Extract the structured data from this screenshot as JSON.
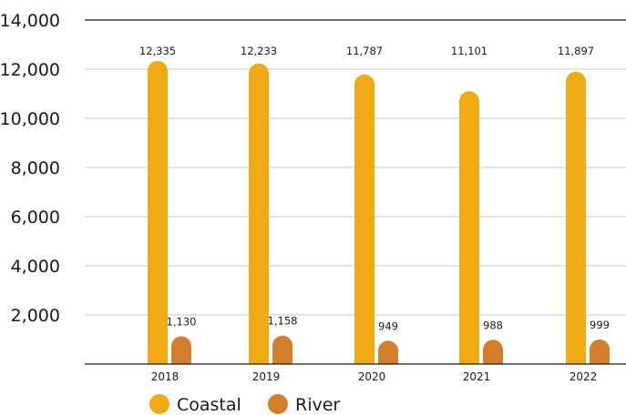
{
  "chart_data": {
    "type": "bar",
    "categories": [
      "2018",
      "2019",
      "2020",
      "2021",
      "2022"
    ],
    "series": [
      {
        "name": "Coastal",
        "values": [
          12335,
          12233,
          11787,
          11101,
          11897
        ],
        "labels": [
          "12,335",
          "12,233",
          "11,787",
          "11,101",
          "11,897"
        ],
        "color": "#F0AA14"
      },
      {
        "name": "River",
        "values": [
          1130,
          1158,
          949,
          988,
          999
        ],
        "labels": [
          "1,130",
          "1,158",
          "949",
          "988",
          "999"
        ],
        "color": "#D47F2C"
      }
    ],
    "ylim": [
      0,
      14000
    ],
    "yticks": [
      2000,
      4000,
      6000,
      8000,
      10000,
      12000,
      14000
    ],
    "ytick_labels": [
      "2,000",
      "4,000",
      "6,000",
      "8,000",
      "10,000",
      "12,000",
      "14,000"
    ],
    "grid": true,
    "legend_position": "bottom-left",
    "gridline_color": "#c8c8c8",
    "axis_color": "#1a1a1a"
  }
}
